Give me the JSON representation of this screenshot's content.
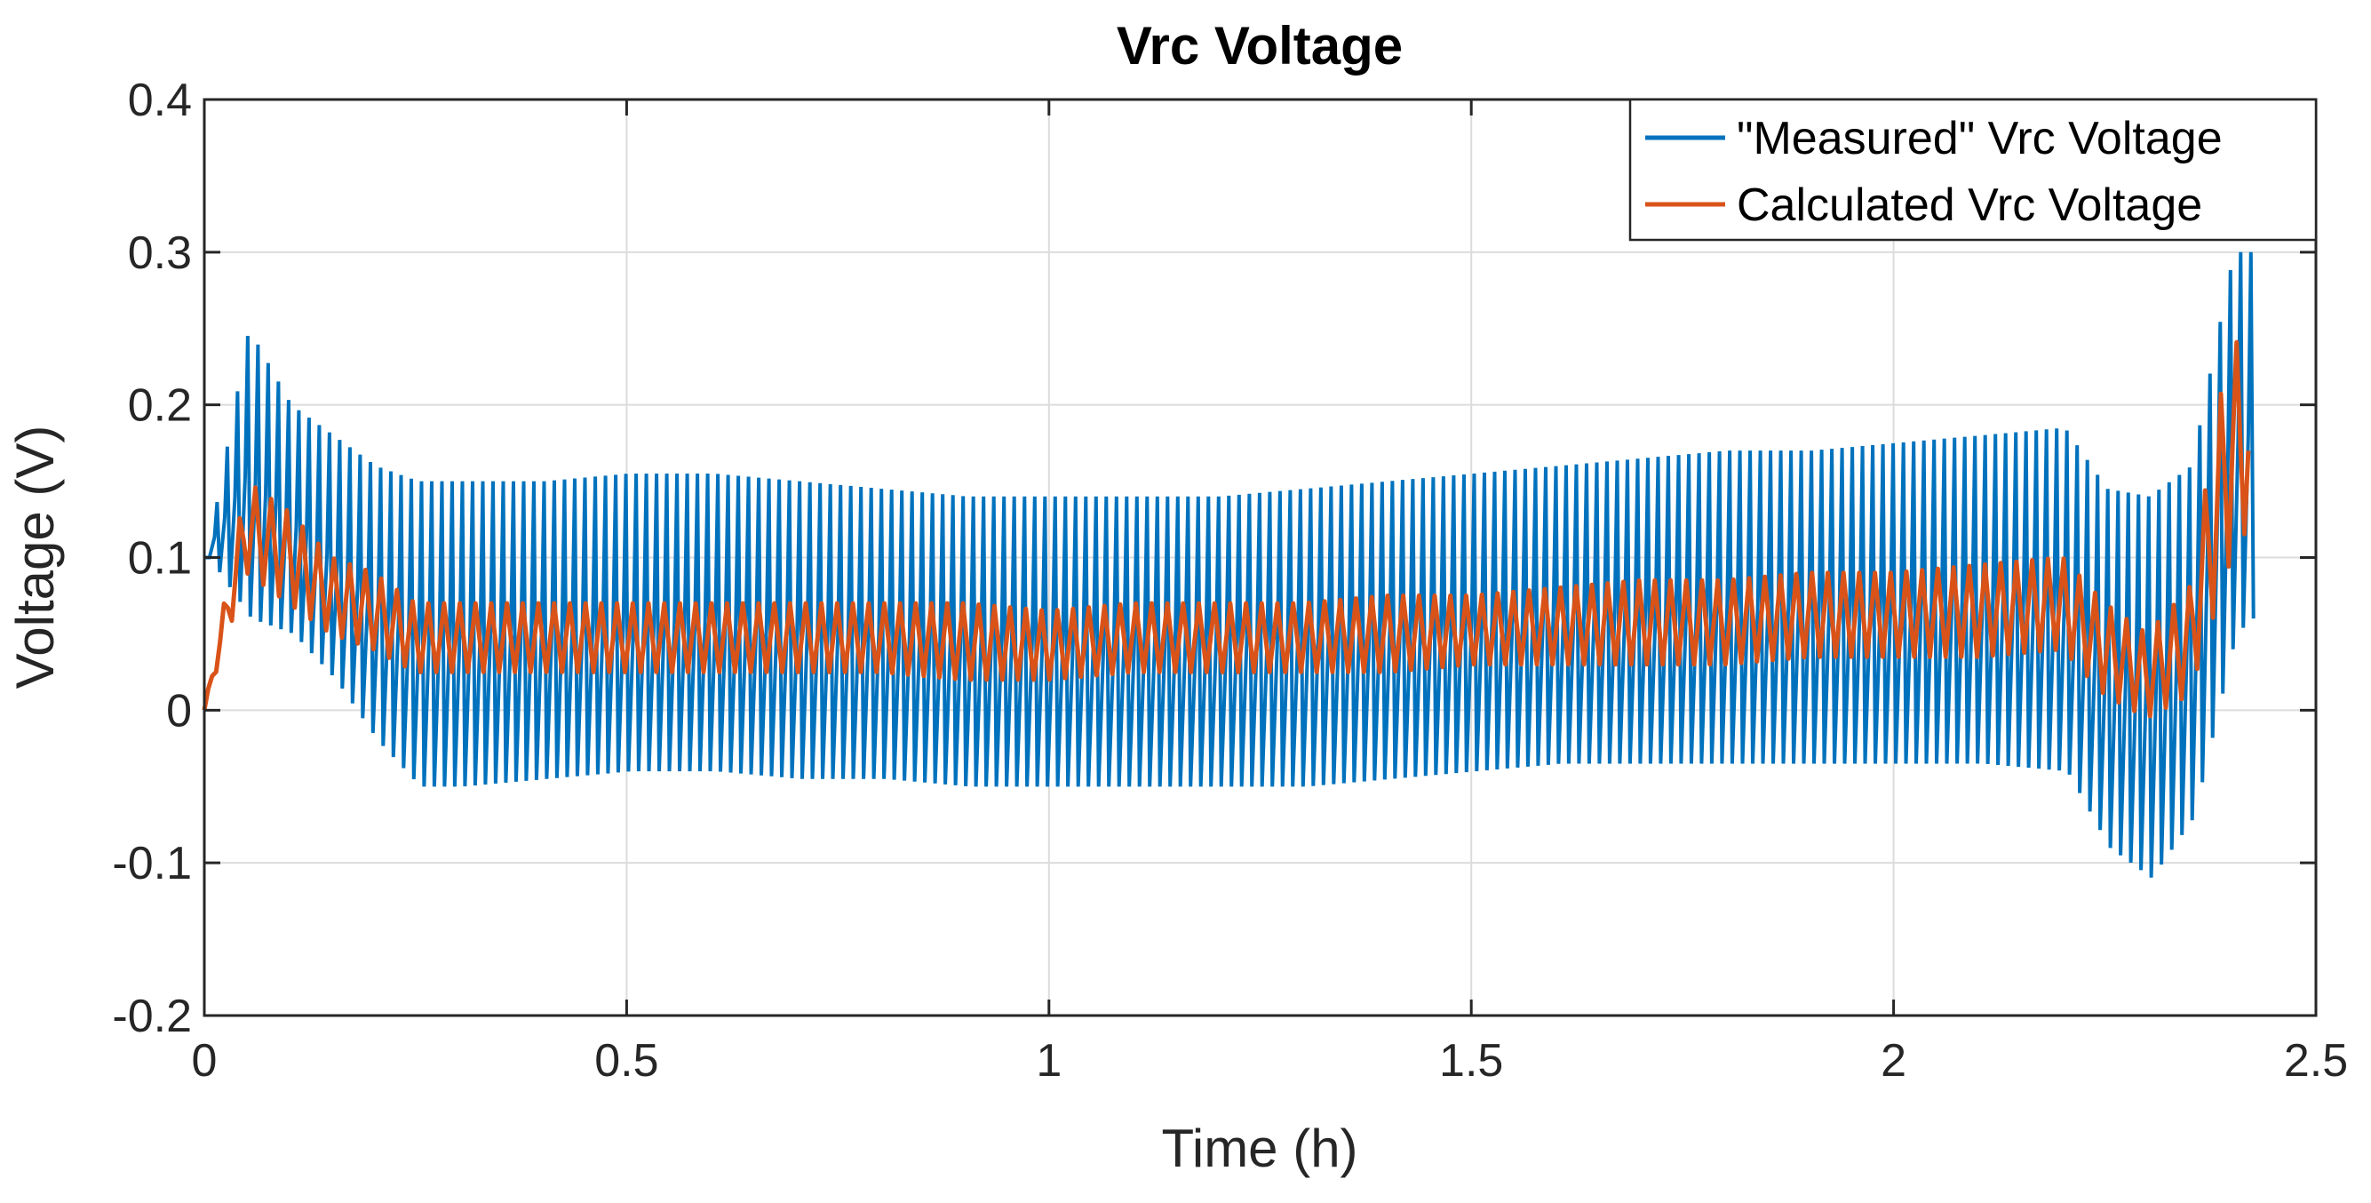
{
  "chart_data": {
    "type": "line",
    "title": "Vrc Voltage",
    "xlabel": "Time (h)",
    "ylabel": "Voltage (V)",
    "xlim": [
      0,
      2.5
    ],
    "ylim": [
      -0.2,
      0.4
    ],
    "xticks": [
      0,
      0.5,
      1,
      1.5,
      2,
      2.5
    ],
    "xtick_labels": [
      "0",
      "0.5",
      "1",
      "1.5",
      "2",
      "2.5"
    ],
    "yticks": [
      -0.2,
      -0.1,
      0,
      0.1,
      0.2,
      0.3,
      0.4
    ],
    "ytick_labels": [
      "-0.2",
      "-0.1",
      "0",
      "0.1",
      "0.2",
      "0.3",
      "0.4"
    ],
    "grid": true,
    "legend_position": "top-right",
    "x": [
      0.0,
      0.05,
      0.1,
      0.15,
      0.2,
      0.25,
      0.3,
      0.4,
      0.5,
      0.6,
      0.7,
      0.8,
      0.9,
      1.0,
      1.1,
      1.2,
      1.3,
      1.4,
      1.5,
      1.6,
      1.7,
      1.8,
      1.9,
      2.0,
      2.1,
      2.2,
      2.25,
      2.3,
      2.35,
      2.4,
      2.42
    ],
    "series": [
      {
        "name": "\"Measured\" Vrc Voltage",
        "color": "#0072BD",
        "max": [
          0.1,
          0.25,
          0.2,
          0.18,
          0.16,
          0.15,
          0.15,
          0.15,
          0.155,
          0.155,
          0.15,
          0.145,
          0.14,
          0.14,
          0.14,
          0.14,
          0.145,
          0.15,
          0.155,
          0.16,
          0.165,
          0.17,
          0.17,
          0.175,
          0.18,
          0.185,
          0.145,
          0.14,
          0.16,
          0.3,
          0.3
        ],
        "min": [
          0.1,
          0.06,
          0.05,
          0.02,
          -0.02,
          -0.05,
          -0.05,
          -0.045,
          -0.04,
          -0.04,
          -0.045,
          -0.045,
          -0.05,
          -0.05,
          -0.05,
          -0.05,
          -0.05,
          -0.045,
          -0.04,
          -0.035,
          -0.035,
          -0.035,
          -0.035,
          -0.035,
          -0.035,
          -0.04,
          -0.09,
          -0.11,
          -0.07,
          0.05,
          0.06
        ]
      },
      {
        "name": "Calculated Vrc Voltage",
        "color": "#D95319",
        "max": [
          0.0,
          0.15,
          0.13,
          0.1,
          0.09,
          0.07,
          0.07,
          0.07,
          0.07,
          0.07,
          0.07,
          0.07,
          0.07,
          0.065,
          0.07,
          0.07,
          0.07,
          0.075,
          0.075,
          0.08,
          0.085,
          0.085,
          0.09,
          0.09,
          0.095,
          0.1,
          0.07,
          0.05,
          0.08,
          0.25,
          0.22
        ],
        "min": [
          0.0,
          0.09,
          0.07,
          0.05,
          0.04,
          0.025,
          0.025,
          0.025,
          0.025,
          0.025,
          0.025,
          0.025,
          0.02,
          0.02,
          0.025,
          0.025,
          0.025,
          0.025,
          0.03,
          0.03,
          0.03,
          0.03,
          0.035,
          0.035,
          0.035,
          0.04,
          0.01,
          -0.005,
          0.01,
          0.1,
          0.12
        ]
      }
    ]
  }
}
